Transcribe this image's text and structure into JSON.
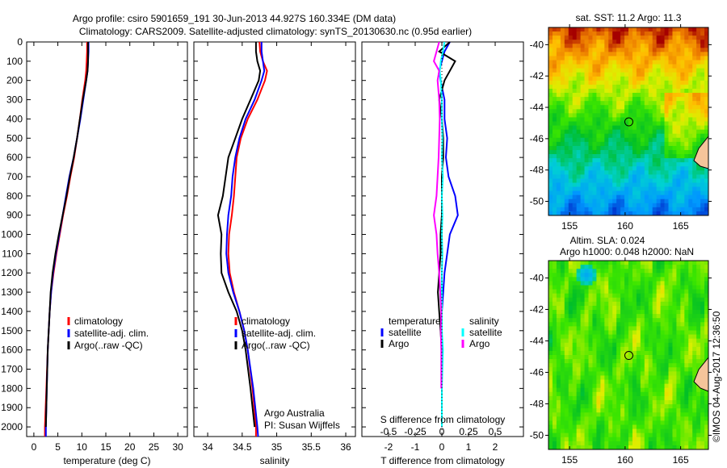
{
  "title_line1": "Argo profile: csiro 5901659_191 30-Jun-2013 44.927S 160.334E (DM data)",
  "title_line2": "Climatology: CARS2009. Satellite-adjusted climatology: synTS_20130630.nc (0.95d earlier)",
  "credit": "©IMOS 04-Aug-2017 12:36:50",
  "colors": {
    "climatology": "#ff0000",
    "satellite": "#0000ff",
    "argo": "#000000",
    "s_satellite": "#00ffff",
    "s_argo": "#ff00ff"
  },
  "chart_data": [
    {
      "type": "line",
      "name": "temperature-profile",
      "xlabel": "temperature (deg C)",
      "ylabel": "depth",
      "xlim": [
        -1.5,
        32
      ],
      "ylim": [
        2050,
        0
      ],
      "xticks": [
        0,
        5,
        10,
        15,
        20,
        25,
        30
      ],
      "yticks": [
        0,
        100,
        200,
        300,
        400,
        500,
        600,
        700,
        800,
        900,
        1000,
        1100,
        1200,
        1300,
        1400,
        1500,
        1600,
        1700,
        1800,
        1900,
        2000
      ],
      "legend": [
        "climatology",
        "satellite-adj. clim.",
        "Argo(..raw -QC)"
      ],
      "legend_placement": "lower-center",
      "depth": [
        0,
        50,
        100,
        150,
        200,
        300,
        400,
        500,
        600,
        700,
        800,
        900,
        1000,
        1100,
        1200,
        1300,
        1400,
        1500,
        1600,
        1800,
        2000,
        2050
      ],
      "series": [
        {
          "name": "climatology",
          "values": [
            11.1,
            11.1,
            11.0,
            10.9,
            10.7,
            10.1,
            9.6,
            9.0,
            8.4,
            7.6,
            6.9,
            6.1,
            5.4,
            4.7,
            4.1,
            3.6,
            3.3,
            3.1,
            2.9,
            2.6,
            2.3,
            2.3
          ]
        },
        {
          "name": "satellite-adj. clim.",
          "values": [
            11.4,
            11.4,
            11.3,
            11.2,
            10.9,
            10.3,
            9.7,
            9.0,
            8.3,
            7.4,
            6.7,
            6.0,
            5.3,
            4.6,
            4.0,
            3.6,
            3.3,
            3.1,
            2.9,
            2.7,
            2.5,
            2.5
          ]
        },
        {
          "name": "Argo(..raw -QC)",
          "values": [
            11.3,
            11.3,
            11.3,
            11.2,
            10.9,
            10.2,
            9.6,
            9.0,
            8.3,
            7.5,
            6.8,
            6.0,
            5.2,
            4.5,
            3.9,
            3.5,
            3.3,
            3.1,
            2.9,
            2.7,
            2.5,
            null
          ]
        }
      ]
    },
    {
      "type": "line",
      "name": "salinity-profile",
      "xlabel": "salinity",
      "xlim": [
        33.8,
        36.14
      ],
      "ylim": [
        2050,
        0
      ],
      "xticks": [
        34,
        34.5,
        35,
        35.5,
        36
      ],
      "legend": [
        "climatology",
        "satellite-adj. clim.",
        "Argo(..raw -QC)"
      ],
      "annotation": [
        "Argo Australia",
        "PI: Susan Wijffels"
      ],
      "depth": [
        0,
        50,
        100,
        150,
        200,
        300,
        400,
        500,
        600,
        700,
        800,
        900,
        1000,
        1100,
        1200,
        1300,
        1400,
        1500,
        1600,
        1800,
        2000,
        2050
      ],
      "series": [
        {
          "name": "climatology",
          "values": [
            34.75,
            34.76,
            34.8,
            34.86,
            34.83,
            34.72,
            34.58,
            34.48,
            34.42,
            34.4,
            34.38,
            34.35,
            34.31,
            34.3,
            34.32,
            34.38,
            34.46,
            34.53,
            34.58,
            34.65,
            34.7,
            34.7
          ]
        },
        {
          "name": "satellite-adj. clim.",
          "values": [
            34.78,
            34.78,
            34.8,
            34.82,
            34.78,
            34.68,
            34.55,
            34.46,
            34.4,
            34.36,
            34.34,
            34.3,
            34.28,
            34.27,
            34.3,
            34.37,
            34.46,
            34.53,
            34.58,
            34.66,
            34.72,
            34.73
          ]
        },
        {
          "name": "Argo(..raw -QC)",
          "values": [
            34.7,
            34.7,
            34.72,
            34.76,
            34.74,
            34.62,
            34.5,
            34.4,
            34.3,
            34.26,
            34.22,
            34.15,
            34.2,
            34.19,
            34.2,
            34.3,
            34.42,
            34.5,
            34.55,
            34.62,
            34.68,
            null
          ]
        }
      ]
    },
    {
      "type": "line",
      "name": "difference-profile",
      "xlabel": "T difference from climatology",
      "x2label": "S difference from climatology",
      "xlim": [
        -3,
        3.06
      ],
      "ylim": [
        2050,
        0
      ],
      "xticks": [
        -2,
        -1,
        0,
        1,
        2
      ],
      "xtick_labels": [
        "-2",
        "-1",
        "0",
        "1",
        "2"
      ],
      "x2ticks": [
        -0.5,
        -0.25,
        0,
        0.25,
        0.5
      ],
      "x2tick_labels": [
        "-0.5",
        "-0.25",
        "0",
        "0.25",
        "0.5"
      ],
      "legend_titles": [
        "temperature",
        "salinity"
      ],
      "legend": [
        "satellite",
        "Argo",
        "satellite",
        "Argo"
      ],
      "depth": [
        0,
        50,
        100,
        150,
        200,
        300,
        400,
        500,
        600,
        700,
        800,
        900,
        1000,
        1100,
        1200,
        1300,
        1400,
        1500,
        1600,
        1800,
        2000
      ],
      "series": [
        {
          "name": "T satellite",
          "values": [
            0.3,
            0.1,
            0.0,
            -0.1,
            -0.05,
            0.1,
            0.1,
            0.2,
            0.15,
            0.25,
            0.5,
            0.6,
            0.3,
            0.2,
            0.1,
            0.05,
            0.0,
            0.0,
            0.0,
            0.0,
            0.0
          ]
        },
        {
          "name": "T Argo",
          "values": [
            0.3,
            -0.1,
            0.5,
            0.3,
            0.1,
            -0.1,
            0.0,
            0.05,
            0.05,
            0.0,
            0.0,
            0.0,
            -0.05,
            -0.05,
            -0.1,
            -0.15,
            -0.1,
            -0.05,
            0.0,
            0.0,
            null
          ]
        },
        {
          "name": "S satellite",
          "values": [
            0.05,
            0.02,
            -0.02,
            -0.04,
            -0.02,
            0.0,
            0.0,
            0.01,
            0.0,
            0.02,
            0.0,
            0.01,
            0.0,
            0.01,
            0.0,
            0.0,
            0.0,
            0.0,
            0.02,
            0.0,
            0.0
          ]
        },
        {
          "name": "S Argo",
          "values": [
            -0.05,
            -0.1,
            -0.15,
            -0.05,
            -0.08,
            -0.05,
            -0.04,
            -0.05,
            -0.06,
            -0.08,
            -0.1,
            -0.15,
            -0.1,
            -0.08,
            -0.05,
            -0.03,
            -0.01,
            -0.02,
            -0.01,
            -0.01,
            null
          ]
        }
      ]
    },
    {
      "type": "heatmap",
      "name": "sst-map",
      "title": "sat. SST: 11.2 Argo: 11.3",
      "xlim": [
        153.1,
        167.5
      ],
      "ylim": [
        -50.9,
        -38.9
      ],
      "xticks": [
        155,
        160,
        165
      ],
      "yticks": [
        -40,
        -42,
        -44,
        -46,
        -48,
        -50
      ],
      "marker": {
        "lon": 160.334,
        "lat": -44.927
      }
    },
    {
      "type": "heatmap",
      "name": "sla-map",
      "title_line1": "Altim. SLA: 0.024",
      "title_line2": "Argo h1000: 0.048 h2000: NaN",
      "xlim": [
        153.1,
        167.5
      ],
      "ylim": [
        -50.9,
        -38.9
      ],
      "xticks": [
        155,
        160,
        165
      ],
      "yticks": [
        -40,
        -42,
        -44,
        -46,
        -48,
        -50
      ],
      "marker": {
        "lon": 160.334,
        "lat": -44.927
      }
    }
  ]
}
